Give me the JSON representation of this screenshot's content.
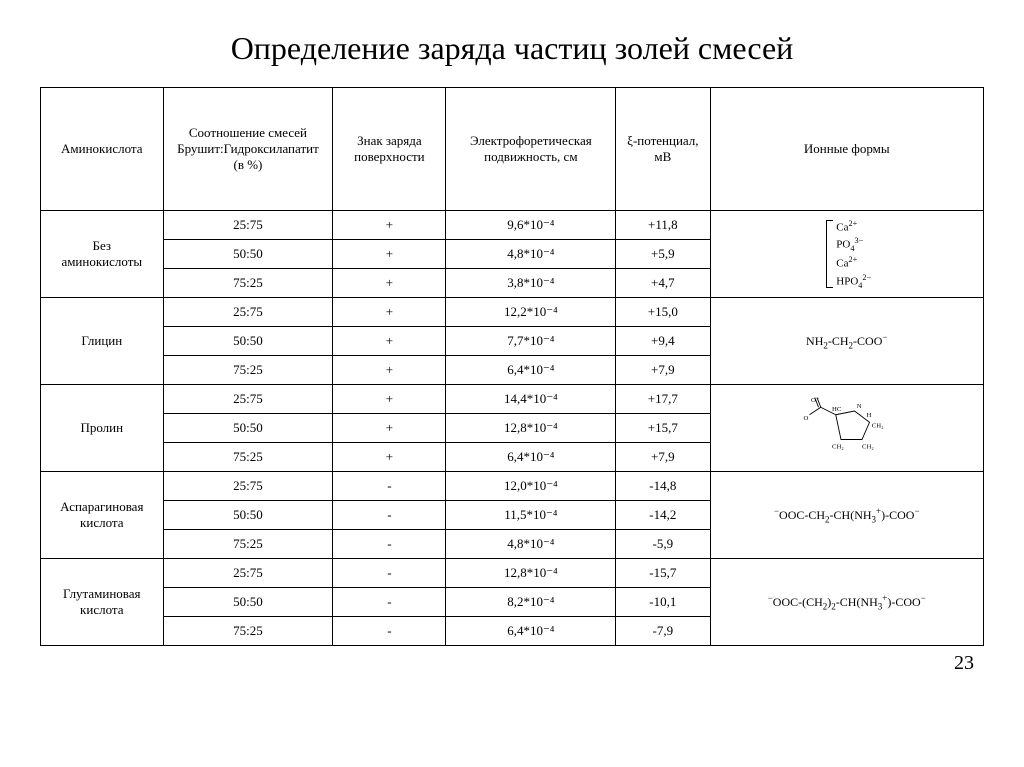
{
  "title": "Определение заряда частиц золей смесей",
  "page_number": "23",
  "headers": {
    "amino": "Аминокислота",
    "ratio": "Соотношение смесей Брушит:Гидроксилапатит (в %)",
    "sign": "Знак заряда поверхности",
    "mobility": "Электрофоретическая подвижность, см",
    "potential": "ξ-потенциал, мВ",
    "ionic": "Ионные формы"
  },
  "groups": [
    {
      "name": "Без аминокислоты",
      "ionic_html": "bracket",
      "rows": [
        {
          "ratio": "25:75",
          "sign": "+",
          "mobility": "9,6*10⁻⁴",
          "potential": "+11,8"
        },
        {
          "ratio": "50:50",
          "sign": "+",
          "mobility": "4,8*10⁻⁴",
          "potential": "+5,9"
        },
        {
          "ratio": "75:25",
          "sign": "+",
          "mobility": "3,8*10⁻⁴",
          "potential": "+4,7"
        }
      ]
    },
    {
      "name": "Глицин",
      "ionic_html": "NH<sub>2</sub>-CH<sub>2</sub>-COO<sup>−</sup>",
      "rows": [
        {
          "ratio": "25:75",
          "sign": "+",
          "mobility": "12,2*10⁻⁴",
          "potential": "+15,0"
        },
        {
          "ratio": "50:50",
          "sign": "+",
          "mobility": "7,7*10⁻⁴",
          "potential": "+9,4"
        },
        {
          "ratio": "75:25",
          "sign": "+",
          "mobility": "6,4*10⁻⁴",
          "potential": "+7,9"
        }
      ]
    },
    {
      "name": "Пролин",
      "ionic_html": "proline",
      "rows": [
        {
          "ratio": "25:75",
          "sign": "+",
          "mobility": "14,4*10⁻⁴",
          "potential": "+17,7"
        },
        {
          "ratio": "50:50",
          "sign": "+",
          "mobility": "12,8*10⁻⁴",
          "potential": "+15,7"
        },
        {
          "ratio": "75:25",
          "sign": "+",
          "mobility": "6,4*10⁻⁴",
          "potential": "+7,9"
        }
      ]
    },
    {
      "name": "Аспарагиновая кислота",
      "ionic_html": "<sup>−</sup>OOC-CH<sub>2</sub>-CH(NH<sub>3</sub><sup>+</sup>)-COO<sup>−</sup>",
      "rows": [
        {
          "ratio": "25:75",
          "sign": "-",
          "mobility": "12,0*10⁻⁴",
          "potential": "-14,8"
        },
        {
          "ratio": "50:50",
          "sign": "-",
          "mobility": "11,5*10⁻⁴",
          "potential": "-14,2"
        },
        {
          "ratio": "75:25",
          "sign": "-",
          "mobility": "4,8*10⁻⁴",
          "potential": "-5,9"
        }
      ]
    },
    {
      "name": "Глутаминовая кислота",
      "ionic_html": "<sup>−</sup>OOC-(CH<sub>2</sub>)<sub>2</sub>-CH(NH<sub>3</sub><sup>+</sup>)-COO<sup>−</sup>",
      "rows": [
        {
          "ratio": "25:75",
          "sign": "-",
          "mobility": "12,8*10⁻⁴",
          "potential": "-15,7"
        },
        {
          "ratio": "50:50",
          "sign": "-",
          "mobility": "8,2*10⁻⁴",
          "potential": "-10,1"
        },
        {
          "ratio": "75:25",
          "sign": "-",
          "mobility": "6,4*10⁻⁴",
          "potential": "-7,9"
        }
      ]
    }
  ],
  "bracket_items": [
    "Ca<sup>2+</sup>",
    "PO<sub>4</sub><sup>3−</sup>",
    "Ca<sup>2+</sup>",
    "HPO<sub>4</sub><sup>2−</sup>"
  ],
  "style": {
    "font_family": "Times New Roman",
    "title_fontsize": 32,
    "table_fontsize": 13,
    "border_color": "#000000",
    "background": "#ffffff",
    "col_widths_pct": [
      13,
      18,
      12,
      18,
      10,
      29
    ]
  }
}
